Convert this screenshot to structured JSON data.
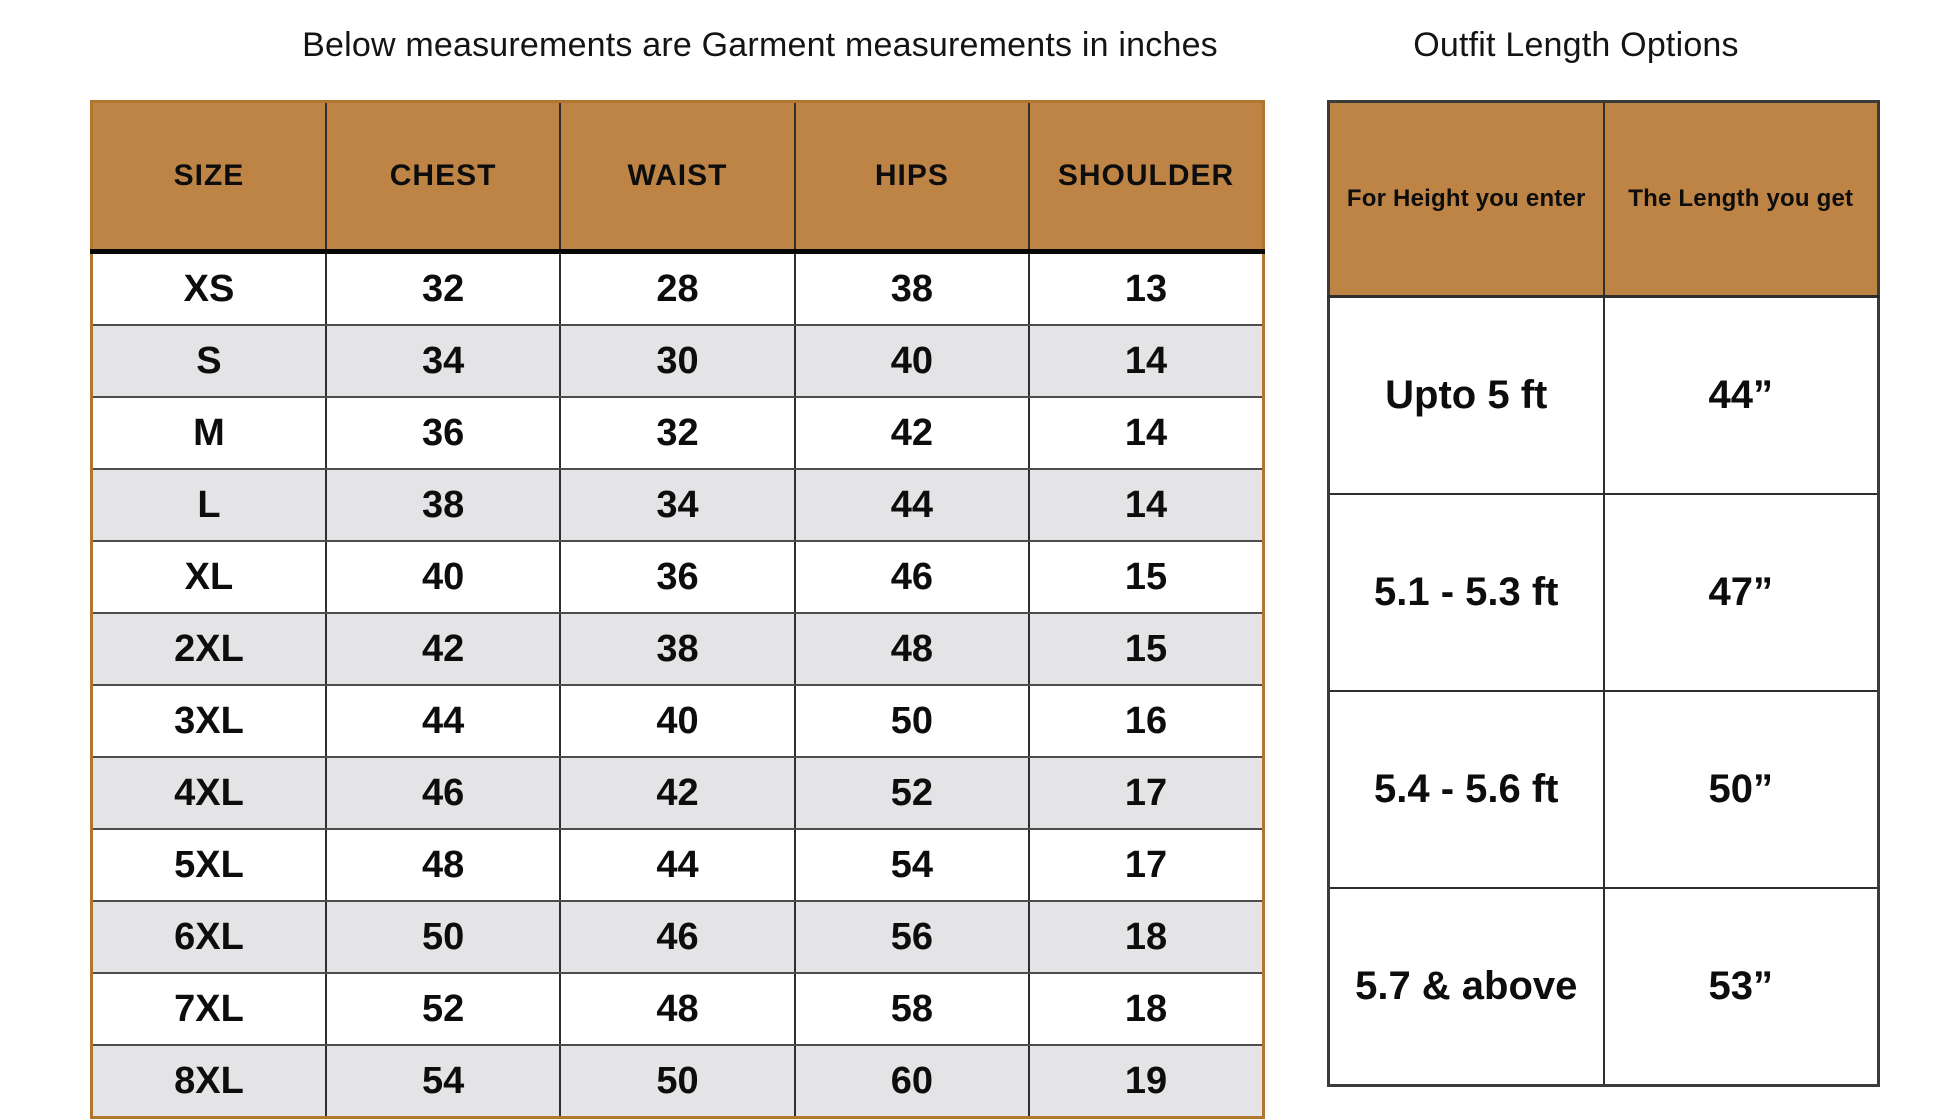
{
  "left_section": {
    "title": "Below measurements are Garment measurements in inches",
    "columns": [
      "SIZE",
      "CHEST",
      "WAIST",
      "HIPS",
      "SHOULDER"
    ],
    "rows": [
      [
        "XS",
        "32",
        "28",
        "38",
        "13"
      ],
      [
        "S",
        "34",
        "30",
        "40",
        "14"
      ],
      [
        "M",
        "36",
        "32",
        "42",
        "14"
      ],
      [
        "L",
        "38",
        "34",
        "44",
        "14"
      ],
      [
        "XL",
        "40",
        "36",
        "46",
        "15"
      ],
      [
        "2XL",
        "42",
        "38",
        "48",
        "15"
      ],
      [
        "3XL",
        "44",
        "40",
        "50",
        "16"
      ],
      [
        "4XL",
        "46",
        "42",
        "52",
        "17"
      ],
      [
        "5XL",
        "48",
        "44",
        "54",
        "17"
      ],
      [
        "6XL",
        "50",
        "46",
        "56",
        "18"
      ],
      [
        "7XL",
        "52",
        "48",
        "58",
        "18"
      ],
      [
        "8XL",
        "54",
        "50",
        "60",
        "19"
      ]
    ]
  },
  "right_section": {
    "title": "Outfit Length Options",
    "columns": [
      "For Height you enter",
      "The Length you get"
    ],
    "rows": [
      [
        "Upto 5 ft",
        "44”"
      ],
      [
        "5.1 - 5.3 ft",
        "47”"
      ],
      [
        "5.4 - 5.6 ft",
        "50”"
      ],
      [
        "5.7 & above",
        "53”"
      ]
    ]
  },
  "colors": {
    "header_fill": "#be8445",
    "alt_row_fill": "#e4e4e7",
    "left_table_outer_border": "#b2762f",
    "right_table_outer_border": "#3b3b3b",
    "grid_dark": "#2e2e2e",
    "grid_mid": "#4d4d4d",
    "text": "#0d0d0d"
  }
}
